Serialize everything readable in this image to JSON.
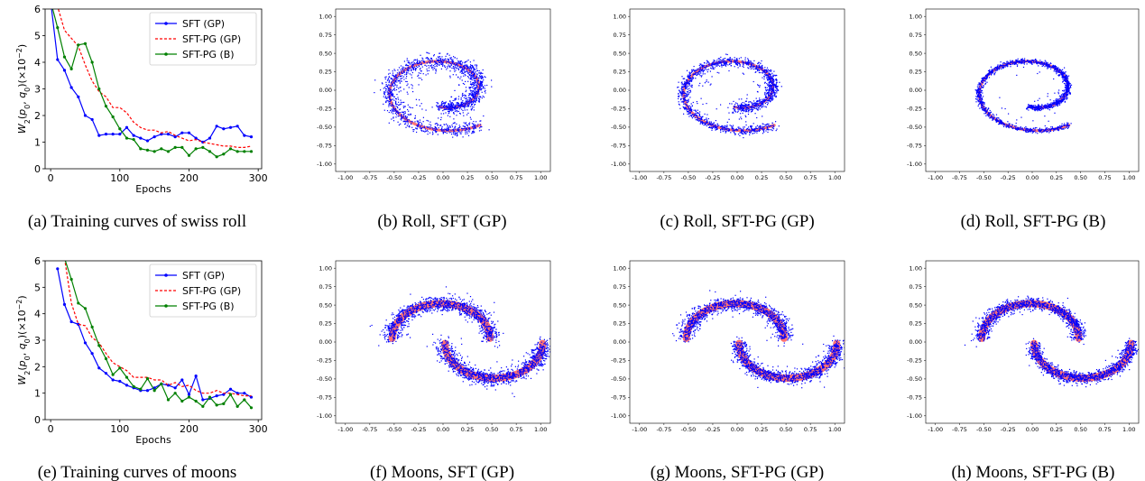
{
  "captions": [
    "(a) Training curves of swiss roll",
    "(b) Roll, SFT (GP)",
    "(c) Roll, SFT-PG (GP)",
    "(d) Roll, SFT-PG (B)",
    "(e) Training curves of moons",
    "(f) Moons, SFT (GP)",
    "(g) Moons, SFT-PG (GP)",
    "(h) Moons, SFT-PG (B)"
  ],
  "colors": {
    "sft_gp": "#0000ff",
    "sft_pg_gp": "#ff0000",
    "sft_pg_b": "#008000",
    "scatter_points": "#0000ff",
    "target_curve": "#ff0000"
  },
  "chart_data": [
    {
      "type": "line",
      "xlabel": "Epochs",
      "ylabel": "W_2(p_0, q_0)(×10^-2)",
      "xlim": [
        -8,
        305
      ],
      "ylim": [
        0,
        6
      ],
      "xticks": [
        0,
        100,
        200,
        300
      ],
      "yticks": [
        0,
        1,
        2,
        3,
        4,
        5,
        6
      ],
      "legend_position": "top-right",
      "series": [
        {
          "name": "SFT (GP)",
          "style": "solid-dot",
          "x": [
            0,
            10,
            20,
            30,
            40,
            50,
            60,
            70,
            80,
            90,
            100,
            110,
            120,
            130,
            140,
            150,
            160,
            170,
            180,
            190,
            200,
            210,
            220,
            230,
            240,
            250,
            260,
            270,
            280,
            290
          ],
          "values": [
            6.3,
            4.1,
            3.7,
            3.05,
            2.7,
            2.0,
            1.85,
            1.25,
            1.3,
            1.3,
            1.3,
            1.55,
            1.25,
            1.15,
            1.05,
            1.2,
            1.3,
            1.3,
            1.2,
            1.35,
            1.35,
            1.15,
            1.0,
            1.15,
            1.6,
            1.5,
            1.55,
            1.6,
            1.25,
            1.2
          ]
        },
        {
          "name": "SFT-PG (GP)",
          "style": "dashed",
          "x": [
            0,
            10,
            20,
            30,
            40,
            50,
            60,
            70,
            80,
            90,
            100,
            110,
            120,
            130,
            140,
            150,
            160,
            170,
            180,
            190,
            200,
            210,
            220,
            230,
            240,
            250,
            260,
            270,
            280,
            290
          ],
          "values": [
            6.6,
            6.1,
            5.2,
            4.9,
            4.6,
            3.9,
            3.3,
            2.9,
            2.7,
            2.3,
            2.3,
            2.1,
            1.75,
            1.55,
            1.45,
            1.45,
            1.35,
            1.4,
            1.25,
            1.15,
            1.05,
            1.1,
            1.0,
            0.95,
            0.9,
            0.85,
            0.85,
            0.8,
            0.8,
            0.85
          ]
        },
        {
          "name": "SFT-PG (B)",
          "style": "solid-dot",
          "x": [
            0,
            10,
            20,
            30,
            40,
            50,
            60,
            70,
            80,
            90,
            100,
            110,
            120,
            130,
            140,
            150,
            160,
            170,
            180,
            190,
            200,
            210,
            220,
            230,
            240,
            250,
            260,
            270,
            280,
            290
          ],
          "values": [
            6.3,
            5.3,
            4.2,
            3.75,
            4.65,
            4.7,
            4.0,
            3.0,
            2.35,
            1.95,
            1.5,
            1.15,
            1.1,
            0.75,
            0.7,
            0.65,
            0.75,
            0.65,
            0.8,
            0.8,
            0.5,
            0.75,
            0.8,
            0.65,
            0.45,
            0.55,
            0.75,
            0.65,
            0.65,
            0.65
          ]
        }
      ]
    },
    {
      "type": "scatter",
      "title": "Roll, SFT (GP)",
      "xlim": [
        -1.1,
        1.1
      ],
      "ylim": [
        -1.1,
        1.1
      ],
      "ticks": [
        "-1.00",
        "-0.75",
        "-0.50",
        "-0.25",
        "0.00",
        "0.25",
        "0.50",
        "0.75",
        "1.00"
      ],
      "shape": "swiss-roll",
      "spread": 0.045,
      "noise_points": 180
    },
    {
      "type": "scatter",
      "title": "Roll, SFT-PG (GP)",
      "xlim": [
        -1.1,
        1.1
      ],
      "ylim": [
        -1.1,
        1.1
      ],
      "ticks": [
        "-1.00",
        "-0.75",
        "-0.50",
        "-0.25",
        "0.00",
        "0.25",
        "0.50",
        "0.75",
        "1.00"
      ],
      "shape": "swiss-roll",
      "spread": 0.032,
      "noise_points": 90
    },
    {
      "type": "scatter",
      "title": "Roll, SFT-PG (B)",
      "xlim": [
        -1.1,
        1.1
      ],
      "ylim": [
        -1.1,
        1.1
      ],
      "ticks": [
        "-1.00",
        "-0.75",
        "-0.50",
        "-0.25",
        "0.00",
        "0.25",
        "0.50",
        "0.75",
        "1.00"
      ],
      "shape": "swiss-roll",
      "spread": 0.018,
      "noise_points": 40
    },
    {
      "type": "line",
      "xlabel": "Epochs",
      "ylabel": "W_2(p_0, q_0)(×10^-2)",
      "xlim": [
        -8,
        305
      ],
      "ylim": [
        0,
        6
      ],
      "xticks": [
        0,
        100,
        200,
        300
      ],
      "yticks": [
        0,
        1,
        2,
        3,
        4,
        5,
        6
      ],
      "legend_position": "top-right",
      "series": [
        {
          "name": "SFT (GP)",
          "style": "solid-dot",
          "x": [
            10,
            20,
            30,
            40,
            50,
            60,
            70,
            80,
            90,
            100,
            110,
            120,
            130,
            140,
            150,
            160,
            170,
            180,
            190,
            200,
            210,
            220,
            230,
            240,
            250,
            260,
            270,
            280,
            290
          ],
          "values": [
            5.7,
            4.35,
            3.7,
            3.6,
            2.9,
            2.5,
            1.95,
            1.75,
            1.5,
            1.45,
            1.3,
            1.2,
            1.1,
            1.1,
            1.2,
            1.35,
            1.3,
            1.2,
            1.5,
            0.95,
            1.65,
            0.75,
            0.8,
            0.9,
            0.95,
            1.15,
            1.0,
            1.0,
            0.85
          ]
        },
        {
          "name": "SFT-PG (GP)",
          "style": "dashed",
          "x": [
            10,
            20,
            30,
            40,
            50,
            60,
            70,
            80,
            90,
            100,
            110,
            120,
            130,
            140,
            150,
            160,
            170,
            180,
            190,
            200,
            210,
            220,
            230,
            240,
            250,
            260,
            270,
            280,
            290
          ],
          "values": [
            6.3,
            6.1,
            4.4,
            3.6,
            3.55,
            3.1,
            2.9,
            2.5,
            2.15,
            2.0,
            1.85,
            1.6,
            1.6,
            1.6,
            1.5,
            1.5,
            1.3,
            1.4,
            1.25,
            1.3,
            1.1,
            1.0,
            1.0,
            1.1,
            1.0,
            1.0,
            0.95,
            0.9,
            0.9
          ]
        },
        {
          "name": "SFT-PG (B)",
          "style": "solid-dot",
          "x": [
            10,
            20,
            30,
            40,
            50,
            60,
            70,
            80,
            90,
            100,
            110,
            120,
            130,
            140,
            150,
            160,
            170,
            180,
            190,
            200,
            210,
            220,
            230,
            240,
            250,
            260,
            270,
            280,
            290
          ],
          "values": [
            6.5,
            6.1,
            5.3,
            4.4,
            4.2,
            3.5,
            2.8,
            2.3,
            1.7,
            1.95,
            1.6,
            1.25,
            1.15,
            1.55,
            1.1,
            1.35,
            0.75,
            1.0,
            0.7,
            0.85,
            0.7,
            0.5,
            0.85,
            0.55,
            0.6,
            0.95,
            0.5,
            0.75,
            0.45
          ]
        }
      ]
    },
    {
      "type": "scatter",
      "title": "Moons, SFT (GP)",
      "xlim": [
        -1.1,
        1.1
      ],
      "ylim": [
        -1.1,
        1.1
      ],
      "ticks": [
        "-1.00",
        "-0.75",
        "-0.50",
        "-0.25",
        "0.00",
        "0.25",
        "0.50",
        "0.75",
        "1.00"
      ],
      "shape": "two-moons",
      "spread": 0.05,
      "noise_points": 60
    },
    {
      "type": "scatter",
      "title": "Moons, SFT-PG (GP)",
      "xlim": [
        -1.1,
        1.1
      ],
      "ylim": [
        -1.1,
        1.1
      ],
      "ticks": [
        "-1.00",
        "-0.75",
        "-0.50",
        "-0.25",
        "0.00",
        "0.25",
        "0.50",
        "0.75",
        "1.00"
      ],
      "shape": "two-moons",
      "spread": 0.045,
      "noise_points": 40
    },
    {
      "type": "scatter",
      "title": "Moons, SFT-PG (B)",
      "xlim": [
        -1.1,
        1.1
      ],
      "ylim": [
        -1.1,
        1.1
      ],
      "ticks": [
        "-1.00",
        "-0.75",
        "-0.50",
        "-0.25",
        "0.00",
        "0.25",
        "0.50",
        "0.75",
        "1.00"
      ],
      "shape": "two-moons",
      "spread": 0.04,
      "noise_points": 20
    }
  ]
}
